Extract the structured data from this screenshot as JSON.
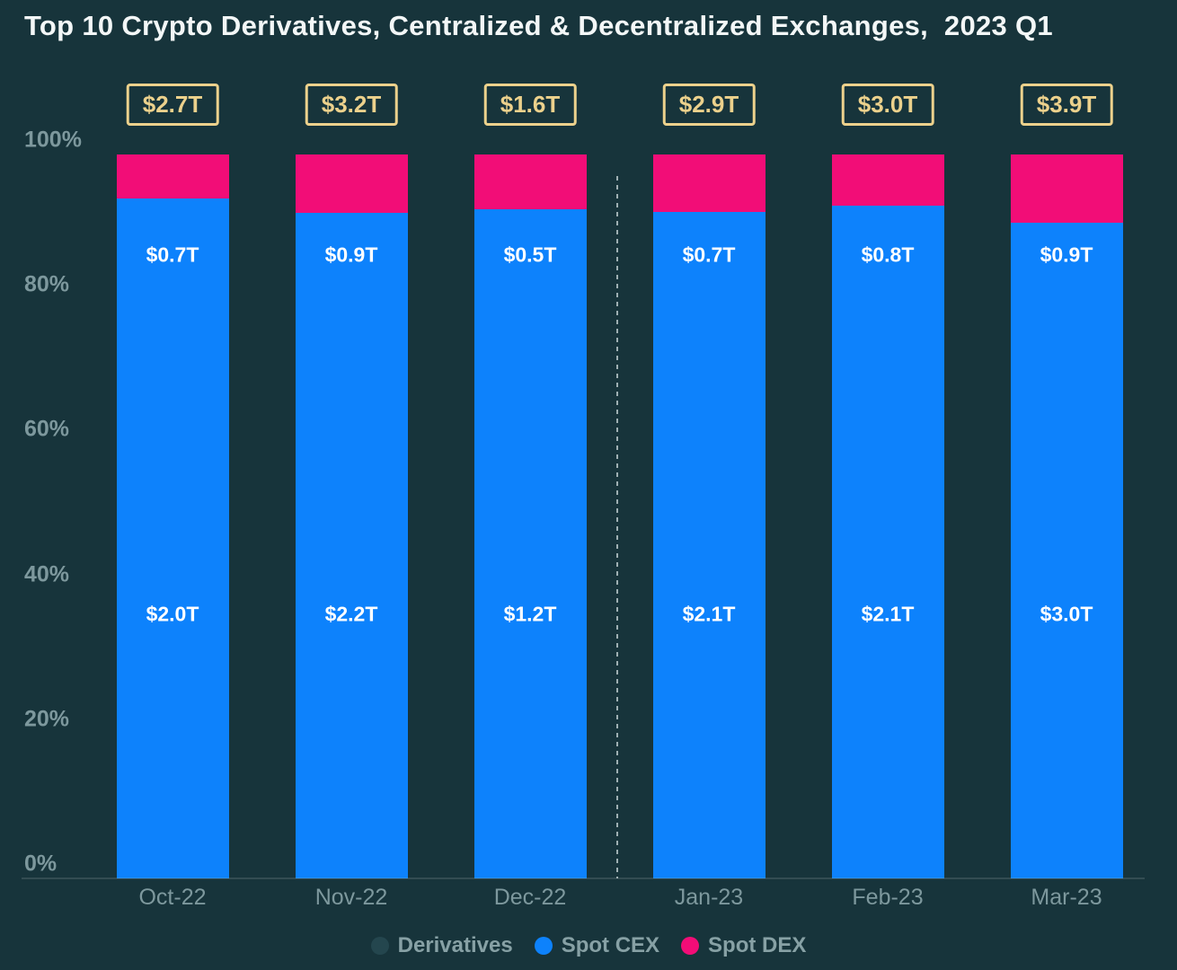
{
  "title": "Top 10 Crypto Derivatives, Centralized & Decentralized Exchanges,  2023 Q1",
  "y_axis": {
    "ticks": [
      "100%",
      "80%",
      "60%",
      "40%",
      "20%",
      "0%"
    ]
  },
  "legend": {
    "items": [
      {
        "label": "Derivatives",
        "color": "#24464e"
      },
      {
        "label": "Spot CEX",
        "color": "#0d82fc"
      },
      {
        "label": "Spot DEX",
        "color": "#f20d77"
      }
    ]
  },
  "chart_data": {
    "type": "bar",
    "subtype": "100-percent-stacked-column",
    "title": "Top 10 Crypto Derivatives, Centralized & Decentralized Exchanges, 2023 Q1",
    "categories": [
      "Oct-22",
      "Nov-22",
      "Dec-22",
      "Jan-23",
      "Feb-23",
      "Mar-23"
    ],
    "totals_boxed": [
      "$2.7T",
      "$3.2T",
      "$1.6T",
      "$2.9T",
      "$3.0T",
      "$3.9T"
    ],
    "series": [
      {
        "name": "Derivatives",
        "labels": [
          "$2.0T",
          "$2.2T",
          "$1.2T",
          "$2.1T",
          "$2.1T",
          "$3.0T"
        ]
      },
      {
        "name": "Spot CEX",
        "labels": [
          "$0.7T",
          "$0.9T",
          "$0.5T",
          "$0.7T",
          "$0.8T",
          "$0.9T"
        ]
      },
      {
        "name": "Spot DEX",
        "visual_share_pct": [
          6.1,
          8.1,
          7.6,
          7.9,
          7.1,
          9.4
        ]
      }
    ],
    "ylim": [
      0,
      100
    ],
    "y_ticks_pct": [
      100,
      80,
      60,
      40,
      20,
      0
    ],
    "grid": false,
    "legend_position": "bottom",
    "divider_between": [
      "Dec-22",
      "Jan-23"
    ]
  },
  "colors": {
    "background": "#17343b",
    "bar_blue": "#0d82fc",
    "bar_pink": "#f20d77",
    "gold": "#ecd18c",
    "axis_text": "#7d989d",
    "title_text": "#f3f7f7",
    "bar_label_text": "#ffffff",
    "divider": "#ccd9db"
  }
}
